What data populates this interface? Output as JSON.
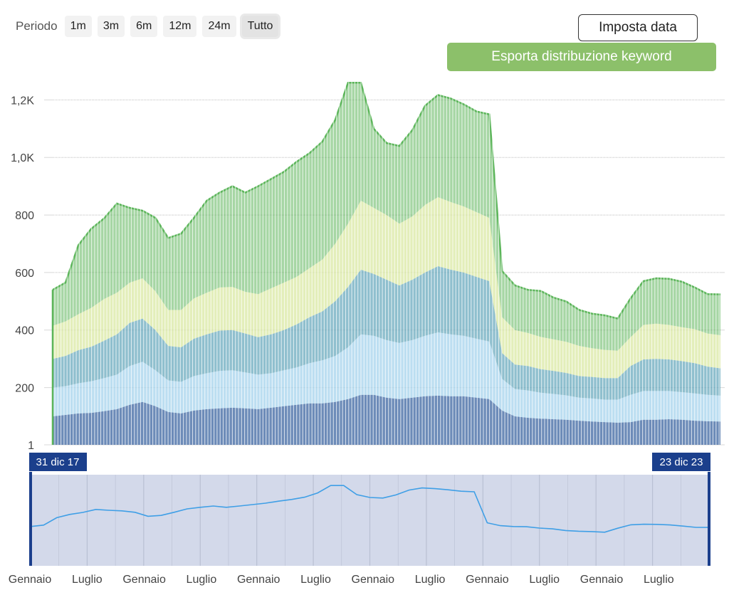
{
  "toolbar": {
    "period_label": "Periodo",
    "periods": [
      "1m",
      "3m",
      "6m",
      "12m",
      "24m",
      "Tutto"
    ],
    "active_period": "Tutto",
    "set_date_label": "Imposta data",
    "export_label": "Esporta distribuzione keyword"
  },
  "colors": {
    "green": "#5cb55a",
    "lightgreen": "#d9e8a3",
    "teal": "#6aa9bd",
    "lightblue": "#a6d3ec",
    "darkblue": "#3b64a0",
    "navigator_line": "#3f9fe6",
    "navigator_bg": "#d3d9ea",
    "navigator_handle": "#1b3f8c",
    "export_button": "#8cc06a"
  },
  "chart_data": {
    "type": "area",
    "stacked": true,
    "x": [
      "2017-12-31",
      "2018-02-11",
      "2018-03-25",
      "2018-05-06",
      "2018-06-17",
      "2018-07-29",
      "2018-09-09",
      "2018-10-21",
      "2018-12-02",
      "2019-01-13",
      "2019-02-24",
      "2019-04-07",
      "2019-05-19",
      "2019-06-30",
      "2019-08-11",
      "2019-09-22",
      "2019-11-03",
      "2019-12-15",
      "2020-01-26",
      "2020-03-08",
      "2020-04-19",
      "2020-05-31",
      "2020-07-12",
      "2020-08-23",
      "2020-10-04",
      "2020-11-15",
      "2020-12-27",
      "2021-02-07",
      "2021-03-21",
      "2021-05-02",
      "2021-06-13",
      "2021-07-25",
      "2021-09-05",
      "2021-10-17",
      "2021-11-28",
      "2022-01-09",
      "2022-02-20",
      "2022-04-03",
      "2022-05-15",
      "2022-06-26",
      "2022-08-07",
      "2022-09-18",
      "2022-10-30",
      "2022-12-11",
      "2023-01-22",
      "2023-03-05",
      "2023-04-16",
      "2023-05-28",
      "2023-07-09",
      "2023-08-20",
      "2023-10-01",
      "2023-11-12",
      "2023-12-23"
    ],
    "series": [
      {
        "color_key": "darkblue",
        "values": [
          100,
          105,
          110,
          112,
          118,
          125,
          140,
          150,
          135,
          115,
          110,
          120,
          125,
          128,
          130,
          128,
          125,
          130,
          135,
          140,
          145,
          145,
          150,
          160,
          175,
          175,
          165,
          160,
          165,
          170,
          172,
          170,
          170,
          165,
          160,
          120,
          100,
          95,
          92,
          90,
          88,
          85,
          82,
          80,
          78,
          80,
          88,
          88,
          90,
          88,
          85,
          83,
          82
        ]
      },
      {
        "color_key": "lightblue",
        "values": [
          100,
          100,
          105,
          110,
          115,
          120,
          135,
          140,
          125,
          110,
          110,
          120,
          125,
          130,
          130,
          125,
          120,
          120,
          125,
          130,
          140,
          150,
          160,
          180,
          210,
          205,
          200,
          195,
          200,
          210,
          220,
          215,
          210,
          205,
          200,
          110,
          95,
          95,
          90,
          88,
          85,
          80,
          80,
          78,
          80,
          95,
          100,
          100,
          98,
          96,
          95,
          92,
          90
        ]
      },
      {
        "color_key": "teal",
        "values": [
          100,
          105,
          115,
          120,
          130,
          140,
          150,
          150,
          140,
          120,
          120,
          130,
          135,
          140,
          140,
          135,
          130,
          135,
          140,
          150,
          160,
          170,
          190,
          210,
          225,
          215,
          210,
          200,
          210,
          220,
          230,
          225,
          220,
          215,
          210,
          90,
          85,
          85,
          82,
          80,
          78,
          75,
          75,
          75,
          75,
          100,
          110,
          112,
          110,
          108,
          105,
          98,
          95
        ]
      },
      {
        "color_key": "lightgreen",
        "values": [
          115,
          120,
          125,
          135,
          145,
          145,
          140,
          140,
          135,
          125,
          130,
          140,
          145,
          150,
          150,
          145,
          150,
          160,
          165,
          165,
          170,
          180,
          200,
          220,
          240,
          230,
          225,
          215,
          220,
          235,
          240,
          235,
          230,
          225,
          220,
          125,
          120,
          115,
          112,
          110,
          108,
          105,
          100,
          98,
          95,
          100,
          120,
          122,
          120,
          118,
          118,
          115,
          115
        ]
      },
      {
        "color_key": "green",
        "values": [
          125,
          135,
          240,
          275,
          280,
          310,
          260,
          235,
          255,
          250,
          265,
          280,
          320,
          330,
          350,
          345,
          375,
          380,
          385,
          400,
          400,
          410,
          430,
          490,
          410,
          275,
          250,
          270,
          300,
          345,
          355,
          360,
          355,
          350,
          360,
          160,
          155,
          150,
          160,
          145,
          140,
          125,
          120,
          120,
          112,
          135,
          152,
          158,
          160,
          158,
          145,
          137,
          142
        ]
      }
    ],
    "ylim": [
      1,
      1300
    ],
    "yticks": [
      "1",
      "200",
      "400",
      "600",
      "800",
      "1,0K",
      "1,2K"
    ],
    "ytick_values": [
      1,
      200,
      400,
      600,
      800,
      1000,
      1200
    ],
    "xlabels": [
      "Gennaio",
      "Luglio",
      "Gennaio",
      "Luglio",
      "Gennaio",
      "Luglio",
      "Gennaio",
      "Luglio",
      "Gennaio",
      "Luglio",
      "Gennaio",
      "Luglio"
    ],
    "navigator": {
      "start_label": "31 dic 17",
      "end_label": "23 dic 23"
    }
  }
}
